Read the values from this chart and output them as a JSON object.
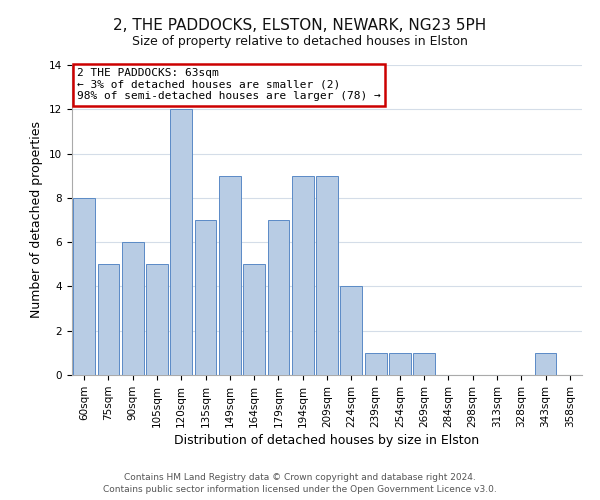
{
  "title": "2, THE PADDOCKS, ELSTON, NEWARK, NG23 5PH",
  "subtitle": "Size of property relative to detached houses in Elston",
  "xlabel": "Distribution of detached houses by size in Elston",
  "ylabel": "Number of detached properties",
  "categories": [
    "60sqm",
    "75sqm",
    "90sqm",
    "105sqm",
    "120sqm",
    "135sqm",
    "149sqm",
    "164sqm",
    "179sqm",
    "194sqm",
    "209sqm",
    "224sqm",
    "239sqm",
    "254sqm",
    "269sqm",
    "284sqm",
    "298sqm",
    "313sqm",
    "328sqm",
    "343sqm",
    "358sqm"
  ],
  "values": [
    8,
    5,
    6,
    5,
    12,
    7,
    9,
    5,
    7,
    9,
    9,
    4,
    1,
    1,
    1,
    0,
    0,
    0,
    0,
    1,
    0
  ],
  "bar_color": "#b8cce4",
  "bar_edge_color": "#5a8ac6",
  "ylim": [
    0,
    14
  ],
  "yticks": [
    0,
    2,
    4,
    6,
    8,
    10,
    12,
    14
  ],
  "annotation_title": "2 THE PADDOCKS: 63sqm",
  "annotation_line1": "← 3% of detached houses are smaller (2)",
  "annotation_line2": "98% of semi-detached houses are larger (78) →",
  "annotation_box_color": "#ffffff",
  "annotation_box_edge": "#cc0000",
  "footer_line1": "Contains HM Land Registry data © Crown copyright and database right 2024.",
  "footer_line2": "Contains public sector information licensed under the Open Government Licence v3.0.",
  "background_color": "#ffffff",
  "grid_color": "#d4dde8",
  "title_fontsize": 11,
  "subtitle_fontsize": 9,
  "axis_label_fontsize": 9,
  "tick_fontsize": 7.5,
  "footer_fontsize": 6.5,
  "annotation_fontsize": 8
}
